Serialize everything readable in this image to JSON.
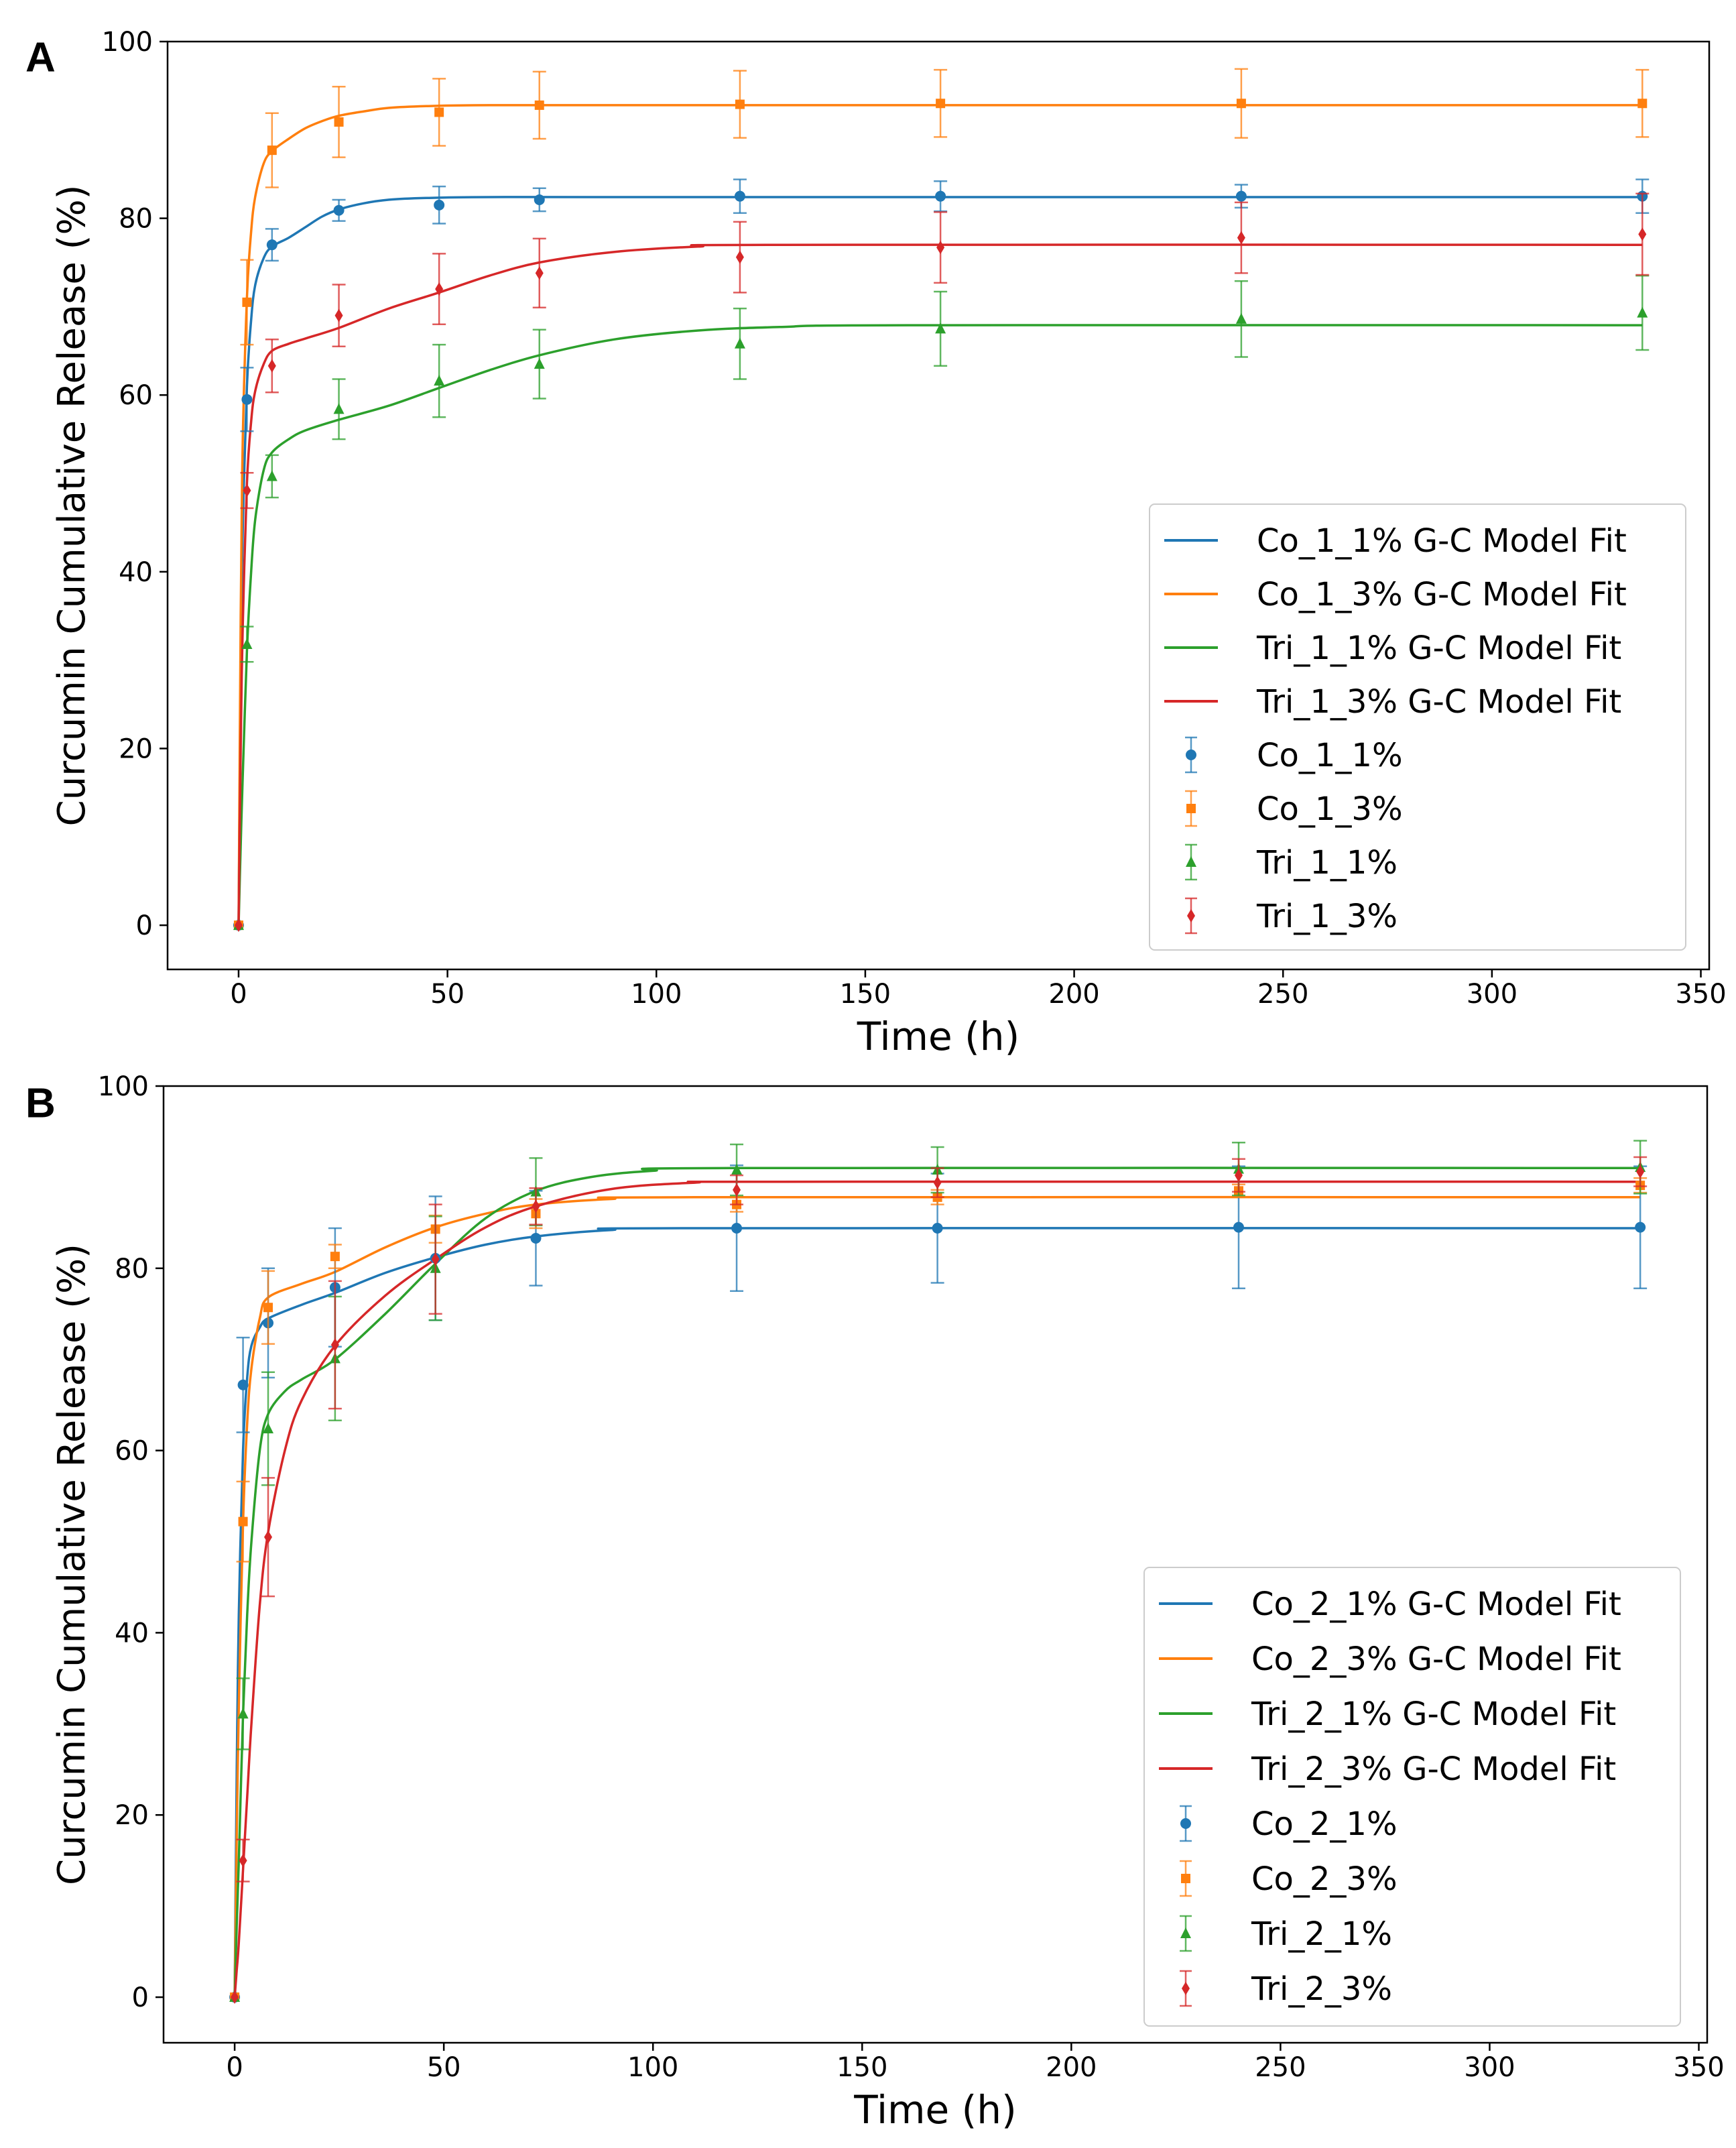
{
  "figure": {
    "panels": [
      "A",
      "B"
    ],
    "colors": {
      "blue": "#1f77b4",
      "orange": "#ff7f0e",
      "green": "#2ca02c",
      "red": "#d62728"
    }
  },
  "chart_data": [
    {
      "panel_label": "A",
      "type": "scatter",
      "title": "",
      "xlabel": "Time (h)",
      "ylabel": "Curcumin Cumulative Release (%)",
      "xlim": [
        -17,
        352
      ],
      "ylim": [
        -5,
        100
      ],
      "xticks": [
        0,
        50,
        100,
        150,
        200,
        250,
        300,
        350
      ],
      "yticks": [
        0,
        20,
        40,
        60,
        80,
        100
      ],
      "grid": false,
      "legend_location": "lower-right",
      "x": [
        0,
        2,
        8,
        24,
        48,
        72,
        120,
        168,
        240,
        336
      ],
      "series": [
        {
          "name": "Co_1_1%",
          "fit_name": "Co_1_1% G-C Model Fit",
          "color": "#1f77b4",
          "marker": "circle",
          "values": [
            0,
            59.5,
            77.0,
            80.9,
            81.5,
            82.1,
            82.5,
            82.5,
            82.5,
            82.5
          ],
          "errors": [
            0,
            3.6,
            1.8,
            1.2,
            2.1,
            1.3,
            1.9,
            1.7,
            1.3,
            1.9
          ],
          "fit": [
            [
              0,
              0
            ],
            [
              0.5,
              28
            ],
            [
              1,
              45
            ],
            [
              2,
              61
            ],
            [
              3,
              68.5
            ],
            [
              4,
              72.5
            ],
            [
              6,
              75.5
            ],
            [
              8,
              76.8
            ],
            [
              12,
              77.8
            ],
            [
              16,
              79.0
            ],
            [
              20,
              80.2
            ],
            [
              24,
              81.0
            ],
            [
              30,
              81.7
            ],
            [
              36,
              82.1
            ],
            [
              45,
              82.3
            ],
            [
              60,
              82.4
            ],
            [
              100,
              82.4
            ],
            [
              336,
              82.4
            ]
          ]
        },
        {
          "name": "Co_1_3%",
          "fit_name": "Co_1_3% G-C Model Fit",
          "color": "#ff7f0e",
          "marker": "square",
          "values": [
            0,
            70.5,
            87.7,
            90.9,
            92.0,
            92.8,
            92.9,
            93.0,
            93.0,
            93.0
          ],
          "errors": [
            0,
            4.8,
            4.2,
            4.0,
            3.8,
            3.8,
            3.8,
            3.8,
            3.9,
            3.8
          ],
          "fit": [
            [
              0,
              0
            ],
            [
              0.5,
              35
            ],
            [
              1,
              55
            ],
            [
              2,
              71
            ],
            [
              3,
              78.5
            ],
            [
              4,
              82.5
            ],
            [
              6,
              86.2
            ],
            [
              8,
              87.6
            ],
            [
              12,
              89.0
            ],
            [
              16,
              90.2
            ],
            [
              20,
              91.0
            ],
            [
              24,
              91.6
            ],
            [
              30,
              92.1
            ],
            [
              36,
              92.5
            ],
            [
              45,
              92.7
            ],
            [
              60,
              92.8
            ],
            [
              100,
              92.8
            ],
            [
              336,
              92.8
            ]
          ]
        },
        {
          "name": "Tri_1_1%",
          "fit_name": "Tri_1_1% G-C Model Fit",
          "color": "#2ca02c",
          "marker": "triangle",
          "values": [
            0,
            31.8,
            50.8,
            58.4,
            61.6,
            63.5,
            65.8,
            67.5,
            68.6,
            69.3
          ],
          "errors": [
            0,
            2.0,
            2.4,
            3.4,
            4.1,
            3.9,
            4.0,
            4.2,
            4.3,
            4.2
          ],
          "fit": [
            [
              0,
              0
            ],
            [
              0.5,
              9
            ],
            [
              1,
              17
            ],
            [
              2,
              31
            ],
            [
              3,
              40
            ],
            [
              4,
              46
            ],
            [
              6,
              51.5
            ],
            [
              8,
              53.5
            ],
            [
              12,
              55.0
            ],
            [
              16,
              56.0
            ],
            [
              24,
              57.2
            ],
            [
              36,
              58.8
            ],
            [
              48,
              60.8
            ],
            [
              60,
              62.8
            ],
            [
              72,
              64.5
            ],
            [
              90,
              66.3
            ],
            [
              110,
              67.3
            ],
            [
              130,
              67.7
            ],
            [
              160,
              67.9
            ],
            [
              336,
              67.9
            ]
          ]
        },
        {
          "name": "Tri_1_3%",
          "fit_name": "Tri_1_3% G-C Model Fit",
          "color": "#d62728",
          "marker": "diamond",
          "values": [
            0,
            49.2,
            63.3,
            69.0,
            72.0,
            73.8,
            75.6,
            76.7,
            77.8,
            78.2
          ],
          "errors": [
            0,
            2.0,
            3.0,
            3.5,
            4.0,
            3.9,
            4.0,
            4.0,
            4.0,
            4.6
          ],
          "fit": [
            [
              0,
              0
            ],
            [
              0.5,
              20
            ],
            [
              1,
              34
            ],
            [
              2,
              50
            ],
            [
              3,
              57
            ],
            [
              4,
              60.5
            ],
            [
              6,
              63.5
            ],
            [
              8,
              65.0
            ],
            [
              12,
              65.8
            ],
            [
              16,
              66.4
            ],
            [
              24,
              67.6
            ],
            [
              36,
              69.8
            ],
            [
              48,
              71.6
            ],
            [
              60,
              73.5
            ],
            [
              72,
              75.0
            ],
            [
              90,
              76.2
            ],
            [
              110,
              76.8
            ],
            [
              130,
              77.0
            ],
            [
              336,
              77.0
            ]
          ]
        }
      ]
    },
    {
      "panel_label": "B",
      "type": "scatter",
      "title": "",
      "xlabel": "Time (h)",
      "ylabel": "Curcumin Cumulative Release (%)",
      "xlim": [
        -17,
        352
      ],
      "ylim": [
        -5,
        100
      ],
      "xticks": [
        0,
        50,
        100,
        150,
        200,
        250,
        300,
        350
      ],
      "yticks": [
        0,
        20,
        40,
        60,
        80,
        100
      ],
      "grid": false,
      "legend_location": "lower-right",
      "x": [
        0,
        2,
        8,
        24,
        48,
        72,
        120,
        168,
        240,
        336
      ],
      "series": [
        {
          "name": "Co_2_1%",
          "fit_name": "Co_2_1% G-C Model Fit",
          "color": "#1f77b4",
          "marker": "circle",
          "values": [
            0,
            67.2,
            74.0,
            77.9,
            81.1,
            83.3,
            84.4,
            84.4,
            84.5,
            84.5
          ],
          "errors": [
            0,
            5.2,
            6.0,
            6.5,
            6.8,
            5.2,
            6.9,
            6.0,
            6.7,
            6.7
          ],
          "fit": [
            [
              0,
              0
            ],
            [
              0.5,
              25
            ],
            [
              1,
              42
            ],
            [
              2,
              60
            ],
            [
              3,
              68
            ],
            [
              4,
              71.5
            ],
            [
              6,
              73.5
            ],
            [
              8,
              74.5
            ],
            [
              16,
              76.0
            ],
            [
              24,
              77.3
            ],
            [
              36,
              79.5
            ],
            [
              48,
              81.2
            ],
            [
              60,
              82.6
            ],
            [
              72,
              83.5
            ],
            [
              90,
              84.2
            ],
            [
              110,
              84.4
            ],
            [
              336,
              84.4
            ]
          ]
        },
        {
          "name": "Co_2_3%",
          "fit_name": "Co_2_3% G-C Model Fit",
          "color": "#ff7f0e",
          "marker": "square",
          "values": [
            0,
            52.2,
            75.7,
            81.3,
            84.3,
            86.0,
            87.0,
            87.8,
            88.5,
            89.1
          ],
          "errors": [
            0,
            4.4,
            4.0,
            1.3,
            1.5,
            1.6,
            0.8,
            0.8,
            0.7,
            0.8
          ],
          "fit": [
            [
              0,
              0
            ],
            [
              0.5,
              18
            ],
            [
              1,
              32
            ],
            [
              2,
              52
            ],
            [
              3,
              63
            ],
            [
              4,
              69
            ],
            [
              6,
              74.5
            ],
            [
              8,
              76.8
            ],
            [
              16,
              78.3
            ],
            [
              24,
              79.6
            ],
            [
              36,
              82.3
            ],
            [
              48,
              84.5
            ],
            [
              60,
              86.0
            ],
            [
              72,
              87.0
            ],
            [
              90,
              87.6
            ],
            [
              110,
              87.8
            ],
            [
              336,
              87.8
            ]
          ]
        },
        {
          "name": "Tri_2_1%",
          "fit_name": "Tri_2_1% G-C Model Fit",
          "color": "#2ca02c",
          "marker": "triangle",
          "values": [
            0,
            31.1,
            62.4,
            70.1,
            80.0,
            88.4,
            90.8,
            90.8,
            90.9,
            91.1
          ],
          "errors": [
            0,
            3.9,
            6.2,
            6.8,
            5.7,
            3.7,
            2.8,
            2.5,
            2.9,
            2.9
          ],
          "fit": [
            [
              0,
              0
            ],
            [
              0.5,
              8
            ],
            [
              1,
              15
            ],
            [
              2,
              31
            ],
            [
              3,
              42
            ],
            [
              4,
              50
            ],
            [
              6,
              60
            ],
            [
              8,
              64
            ],
            [
              12,
              66.5
            ],
            [
              16,
              67.8
            ],
            [
              24,
              70.0
            ],
            [
              36,
              75.0
            ],
            [
              48,
              80.5
            ],
            [
              60,
              85.5
            ],
            [
              72,
              88.5
            ],
            [
              85,
              90.0
            ],
            [
              100,
              90.7
            ],
            [
              120,
              91.0
            ],
            [
              336,
              91.0
            ]
          ]
        },
        {
          "name": "Tri_2_3%",
          "fit_name": "Tri_2_3% G-C Model Fit",
          "color": "#d62728",
          "marker": "diamond",
          "values": [
            0,
            15.0,
            50.5,
            71.6,
            81.0,
            86.8,
            88.6,
            89.4,
            90.2,
            90.6
          ],
          "errors": [
            0,
            2.3,
            6.5,
            7.0,
            6.0,
            2.0,
            1.6,
            1.6,
            1.8,
            1.6
          ],
          "fit": [
            [
              0,
              0
            ],
            [
              0.5,
              3
            ],
            [
              1,
              6
            ],
            [
              2,
              14
            ],
            [
              3,
              22
            ],
            [
              4,
              30
            ],
            [
              6,
              43
            ],
            [
              8,
              51
            ],
            [
              12,
              60
            ],
            [
              16,
              65.5
            ],
            [
              24,
              71.5
            ],
            [
              36,
              77.0
            ],
            [
              48,
              81.0
            ],
            [
              60,
              84.5
            ],
            [
              72,
              86.8
            ],
            [
              90,
              88.7
            ],
            [
              110,
              89.4
            ],
            [
              130,
              89.5
            ],
            [
              336,
              89.5
            ]
          ]
        }
      ]
    }
  ]
}
